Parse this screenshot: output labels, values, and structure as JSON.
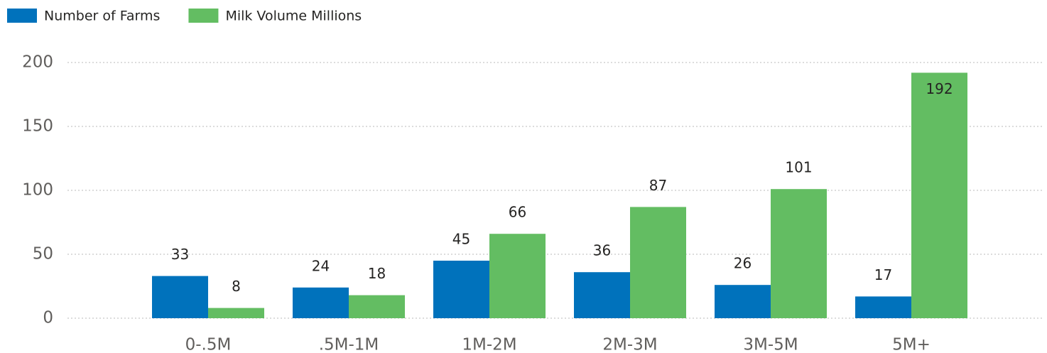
{
  "chart_data": {
    "type": "bar",
    "categories": [
      "0-.5M",
      ".5M-1M",
      "1M-2M",
      "2M-3M",
      "3M-5M",
      "5M+"
    ],
    "series": [
      {
        "name": "Number of Farms",
        "color": "#0072bc",
        "values": [
          33,
          24,
          45,
          36,
          26,
          17
        ]
      },
      {
        "name": "Milk Volume Millions",
        "color": "#63bd62",
        "values": [
          8,
          18,
          66,
          87,
          101,
          192
        ]
      }
    ],
    "ylim": [
      0,
      200
    ],
    "yticks": [
      0,
      50,
      100,
      150,
      200
    ],
    "grid": true,
    "legend": "top-left"
  }
}
